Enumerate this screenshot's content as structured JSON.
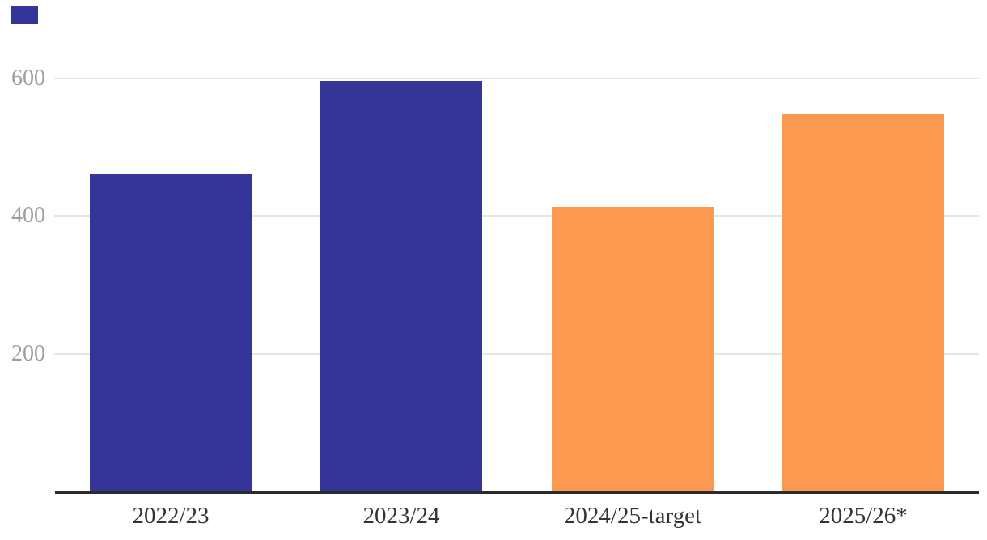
{
  "chart_data": {
    "type": "bar",
    "categories": [
      "2022/23",
      "2023/24",
      "2024/25-target",
      "2025/26*"
    ],
    "values": [
      461,
      597,
      413,
      548
    ],
    "bar_colors": [
      "#343499",
      "#343499",
      "#FC9950",
      "#FC9950"
    ],
    "title": "",
    "xlabel": "",
    "ylabel": "",
    "ylim": [
      0,
      640
    ],
    "yticks": [
      200,
      400,
      600
    ],
    "grid": "horizontal",
    "legend_position": "top-left",
    "legend_swatch_color": "#343499"
  },
  "colors": {
    "background": "#FFFFFF",
    "navy": "#343499",
    "orange": "#FC9950",
    "gridline": "#E5E5E5",
    "axis_line": "#2B2B2B",
    "y_tick_label": "#9E9E9E",
    "x_category_label": "#333333"
  }
}
